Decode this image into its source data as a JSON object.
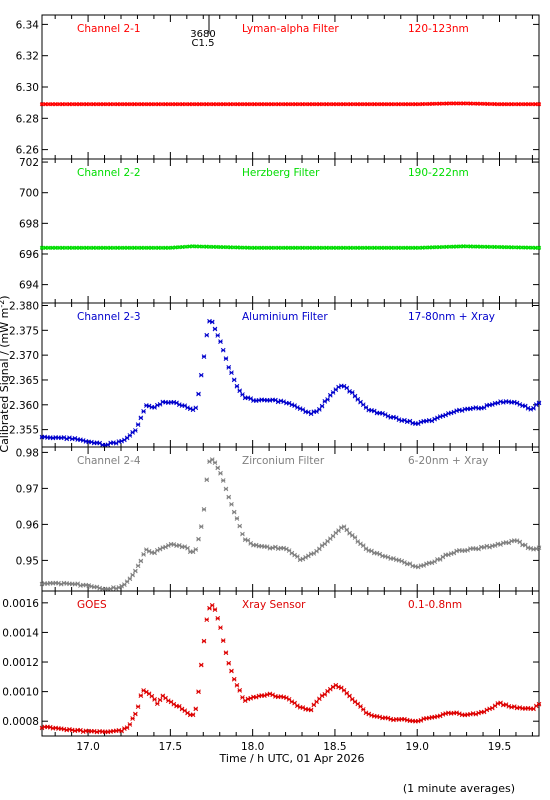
{
  "figure": {
    "ylabel": "Calibrated Signal / (mW m",
    "ylabel_sup": "-2",
    "ylabel_end": ")",
    "xlabel": "Time / h UTC, 01 Apr 2026",
    "footnote": "(1 minute averages)",
    "x_ticks": [
      "17.0",
      "17.5",
      "18.0",
      "18.5",
      "19.0",
      "19.5"
    ],
    "marker": {
      "label_top": "3680",
      "label_bottom": "C1.5"
    }
  },
  "chart_data": [
    {
      "type": "scatter",
      "title": "Channel 2-1",
      "filter": "Lyman-alpha Filter",
      "band": "120-123nm",
      "color": "#ff0000",
      "xlim": [
        16.72,
        19.74
      ],
      "ylim": [
        6.254,
        6.346
      ],
      "yticks": [
        "6.26",
        "6.28",
        "6.30",
        "6.32",
        "6.34"
      ],
      "shape": "flat",
      "points": [
        [
          16.72,
          6.289
        ],
        [
          17.5,
          6.289
        ],
        [
          18.0,
          6.289
        ],
        [
          18.5,
          6.289
        ],
        [
          19.0,
          6.289
        ],
        [
          19.2,
          6.2895
        ],
        [
          19.3,
          6.2895
        ],
        [
          19.5,
          6.289
        ],
        [
          19.74,
          6.289
        ]
      ]
    },
    {
      "type": "scatter",
      "title": "Channel 2-2",
      "filter": "Herzberg Filter",
      "band": "190-222nm",
      "color": "#00dd00",
      "xlim": [
        16.72,
        19.74
      ],
      "ylim": [
        692.8,
        702.2
      ],
      "yticks": [
        "694",
        "696",
        "698",
        "700",
        "702"
      ],
      "shape": "flat",
      "points": [
        [
          16.72,
          696.4
        ],
        [
          17.5,
          696.4
        ],
        [
          17.63,
          696.5
        ],
        [
          18.0,
          696.4
        ],
        [
          18.5,
          696.4
        ],
        [
          19.0,
          696.4
        ],
        [
          19.28,
          696.5
        ],
        [
          19.74,
          696.4
        ]
      ]
    },
    {
      "type": "scatter",
      "title": "Channel 2-3",
      "filter": "Aluminium Filter",
      "band": "17-80nm + Xray",
      "color": "#0000cc",
      "xlim": [
        16.72,
        19.74
      ],
      "ylim": [
        2.3515,
        2.3805
      ],
      "yticks": [
        "2.355",
        "2.360",
        "2.365",
        "2.370",
        "2.375",
        "2.380"
      ],
      "shape": "flare",
      "points": [
        [
          16.72,
          2.3535
        ],
        [
          16.9,
          2.3532
        ],
        [
          17.0,
          2.3525
        ],
        [
          17.1,
          2.352
        ],
        [
          17.2,
          2.3525
        ],
        [
          17.25,
          2.3535
        ],
        [
          17.3,
          2.3555
        ],
        [
          17.35,
          2.3598
        ],
        [
          17.4,
          2.3595
        ],
        [
          17.45,
          2.3605
        ],
        [
          17.5,
          2.3605
        ],
        [
          17.55,
          2.3602
        ],
        [
          17.6,
          2.3595
        ],
        [
          17.63,
          2.359
        ],
        [
          17.66,
          2.3595
        ],
        [
          17.68,
          2.3645
        ],
        [
          17.7,
          2.3685
        ],
        [
          17.73,
          2.3765
        ],
        [
          17.75,
          2.3772
        ],
        [
          17.8,
          2.373
        ],
        [
          17.85,
          2.368
        ],
        [
          17.9,
          2.364
        ],
        [
          17.95,
          2.3615
        ],
        [
          18.0,
          2.361
        ],
        [
          18.1,
          2.361
        ],
        [
          18.2,
          2.3605
        ],
        [
          18.3,
          2.359
        ],
        [
          18.35,
          2.3582
        ],
        [
          18.4,
          2.359
        ],
        [
          18.5,
          2.363
        ],
        [
          18.55,
          2.364
        ],
        [
          18.6,
          2.3625
        ],
        [
          18.7,
          2.359
        ],
        [
          18.8,
          2.358
        ],
        [
          18.9,
          2.357
        ],
        [
          19.0,
          2.3562
        ],
        [
          19.1,
          2.357
        ],
        [
          19.2,
          2.3585
        ],
        [
          19.3,
          2.359
        ],
        [
          19.4,
          2.3595
        ],
        [
          19.5,
          2.3605
        ],
        [
          19.6,
          2.3605
        ],
        [
          19.7,
          2.359
        ],
        [
          19.74,
          2.3605
        ]
      ]
    },
    {
      "type": "scatter",
      "title": "Channel 2-4",
      "filter": "Zirconium Filter",
      "band": "6-20nm + Xray",
      "color": "#808080",
      "xlim": [
        16.72,
        19.74
      ],
      "ylim": [
        0.9415,
        0.9815
      ],
      "yticks": [
        "0.95",
        "0.96",
        "0.97",
        "0.98"
      ],
      "shape": "flare",
      "points": [
        [
          16.72,
          0.9435
        ],
        [
          16.9,
          0.9435
        ],
        [
          17.0,
          0.943
        ],
        [
          17.1,
          0.942
        ],
        [
          17.2,
          0.9425
        ],
        [
          17.25,
          0.9445
        ],
        [
          17.3,
          0.948
        ],
        [
          17.35,
          0.953
        ],
        [
          17.4,
          0.952
        ],
        [
          17.45,
          0.9535
        ],
        [
          17.5,
          0.9545
        ],
        [
          17.55,
          0.954
        ],
        [
          17.6,
          0.9535
        ],
        [
          17.63,
          0.952
        ],
        [
          17.66,
          0.9535
        ],
        [
          17.7,
          0.962
        ],
        [
          17.73,
          0.977
        ],
        [
          17.75,
          0.9785
        ],
        [
          17.8,
          0.975
        ],
        [
          17.85,
          0.968
        ],
        [
          17.9,
          0.962
        ],
        [
          17.95,
          0.956
        ],
        [
          18.0,
          0.9545
        ],
        [
          18.1,
          0.9535
        ],
        [
          18.2,
          0.9535
        ],
        [
          18.3,
          0.95
        ],
        [
          18.4,
          0.953
        ],
        [
          18.5,
          0.9575
        ],
        [
          18.55,
          0.9595
        ],
        [
          18.6,
          0.957
        ],
        [
          18.7,
          0.953
        ],
        [
          18.8,
          0.951
        ],
        [
          18.9,
          0.95
        ],
        [
          19.0,
          0.948
        ],
        [
          19.1,
          0.9495
        ],
        [
          19.2,
          0.952
        ],
        [
          19.3,
          0.953
        ],
        [
          19.4,
          0.9535
        ],
        [
          19.5,
          0.9545
        ],
        [
          19.6,
          0.9555
        ],
        [
          19.7,
          0.953
        ],
        [
          19.74,
          0.9535
        ]
      ]
    },
    {
      "type": "scatter",
      "title": "GOES",
      "filter": "Xray Sensor",
      "band": "0.1-0.8nm",
      "color": "#dd0000",
      "xlim": [
        16.72,
        19.74
      ],
      "ylim": [
        0.0007,
        0.00168
      ],
      "yticks": [
        "0.0008",
        "0.0010",
        "0.0012",
        "0.0014",
        "0.0016"
      ],
      "shape": "flare",
      "points": [
        [
          16.72,
          0.00076
        ],
        [
          16.8,
          0.00075
        ],
        [
          16.9,
          0.00074
        ],
        [
          17.0,
          0.00073
        ],
        [
          17.1,
          0.00073
        ],
        [
          17.2,
          0.000735
        ],
        [
          17.25,
          0.00077
        ],
        [
          17.3,
          0.00088
        ],
        [
          17.33,
          0.00101
        ],
        [
          17.38,
          0.00098
        ],
        [
          17.42,
          0.00092
        ],
        [
          17.45,
          0.00097
        ],
        [
          17.5,
          0.00093
        ],
        [
          17.55,
          0.0009
        ],
        [
          17.6,
          0.00086
        ],
        [
          17.63,
          0.00083
        ],
        [
          17.66,
          0.00089
        ],
        [
          17.7,
          0.0013
        ],
        [
          17.73,
          0.00156
        ],
        [
          17.76,
          0.00159
        ],
        [
          17.8,
          0.00145
        ],
        [
          17.85,
          0.0012
        ],
        [
          17.9,
          0.00105
        ],
        [
          17.95,
          0.00094
        ],
        [
          18.0,
          0.00096
        ],
        [
          18.1,
          0.00098
        ],
        [
          18.2,
          0.00096
        ],
        [
          18.3,
          0.00089
        ],
        [
          18.35,
          0.00087
        ],
        [
          18.4,
          0.00095
        ],
        [
          18.5,
          0.00104
        ],
        [
          18.55,
          0.00102
        ],
        [
          18.6,
          0.00095
        ],
        [
          18.7,
          0.00085
        ],
        [
          18.8,
          0.00082
        ],
        [
          18.9,
          0.00081
        ],
        [
          19.0,
          0.0008
        ],
        [
          19.1,
          0.00083
        ],
        [
          19.2,
          0.00086
        ],
        [
          19.3,
          0.00084
        ],
        [
          19.4,
          0.00086
        ],
        [
          19.5,
          0.00092
        ],
        [
          19.6,
          0.00089
        ],
        [
          19.7,
          0.00088
        ],
        [
          19.74,
          0.00092
        ]
      ]
    }
  ]
}
